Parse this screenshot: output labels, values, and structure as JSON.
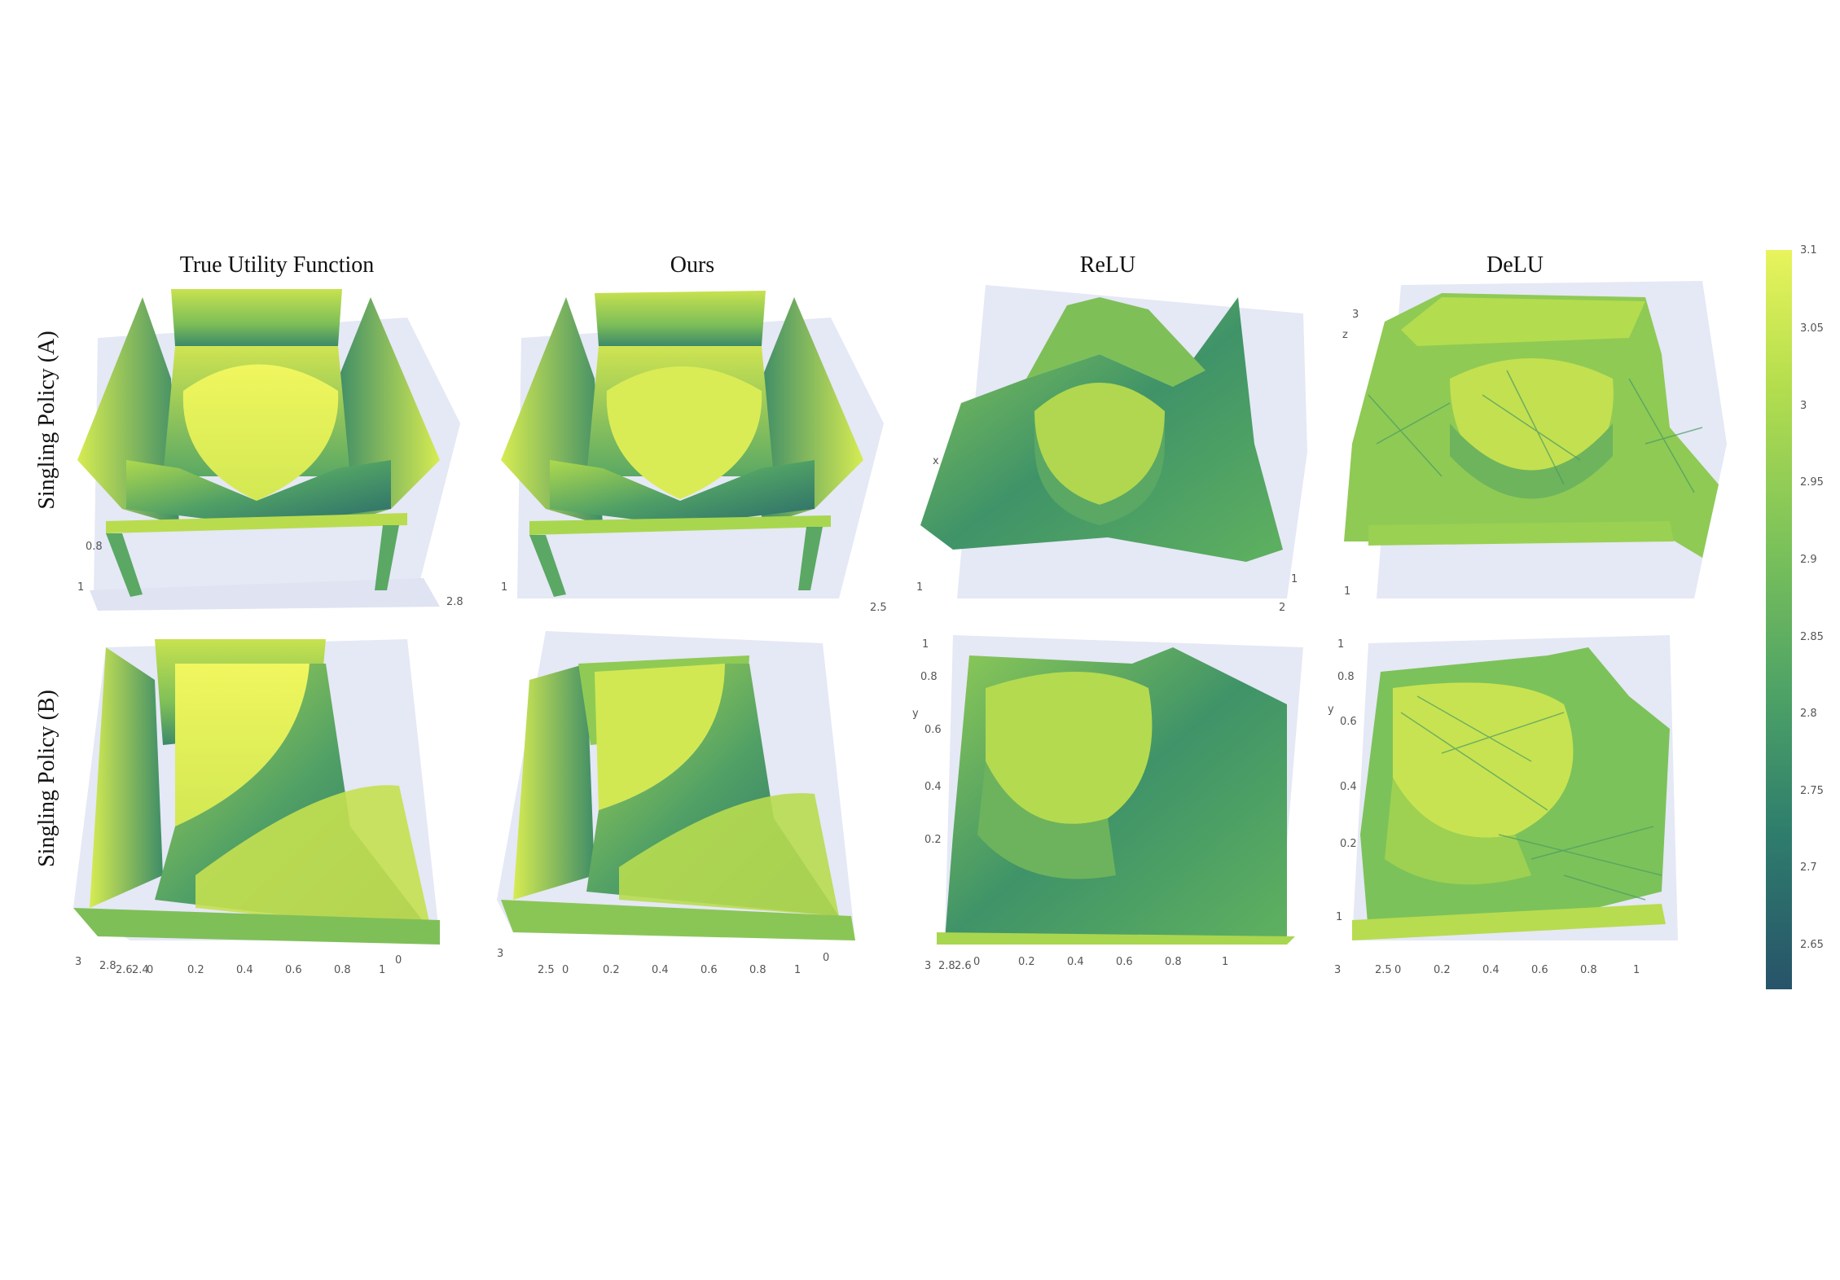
{
  "figure": {
    "column_titles": [
      "True Utility Function",
      "Ours",
      "ReLU",
      "DeLU"
    ],
    "row_labels": [
      "Singling Policy (A)",
      "Singling Policy (B)"
    ]
  },
  "colorbar": {
    "ticks": [
      "3.1",
      "3.05",
      "3",
      "2.95",
      "2.9",
      "2.85",
      "2.8",
      "2.75",
      "2.7",
      "2.65"
    ],
    "colors": [
      "#e8f45c",
      "#b5de4e",
      "#7cc25a",
      "#4da266",
      "#2f7f6c",
      "#27536a"
    ]
  },
  "panels": {
    "a_true": {
      "labels": [
        "0.8",
        "1",
        "2.8"
      ]
    },
    "a_ours": {
      "labels": [
        "1",
        "2.5"
      ]
    },
    "a_relu": {
      "labels": [
        "x",
        "1",
        "2",
        "1"
      ]
    },
    "a_delu": {
      "labels": [
        "3",
        "z",
        "1"
      ]
    },
    "b_true": {
      "labels": [
        "3",
        "2.8",
        "2.6",
        "2.4",
        "0",
        "0.2",
        "0.4",
        "0.6",
        "0.8",
        "1",
        "0"
      ]
    },
    "b_ours": {
      "labels": [
        "3",
        "2.5",
        "0",
        "0.2",
        "0.4",
        "0.6",
        "0.8",
        "1",
        "0"
      ]
    },
    "b_relu": {
      "labels": [
        "1",
        "0.8",
        "y",
        "0.6",
        "0.4",
        "0.2",
        "3",
        "2.8",
        "2.6",
        "0",
        "0.2",
        "0.4",
        "0.6",
        "0.8",
        "1"
      ]
    },
    "b_delu": {
      "labels": [
        "1",
        "0.8",
        "y",
        "0.6",
        "0.4",
        "0.2",
        "1",
        "3",
        "2.5",
        "0",
        "0.2",
        "0.4",
        "0.6",
        "0.8",
        "1"
      ]
    }
  }
}
